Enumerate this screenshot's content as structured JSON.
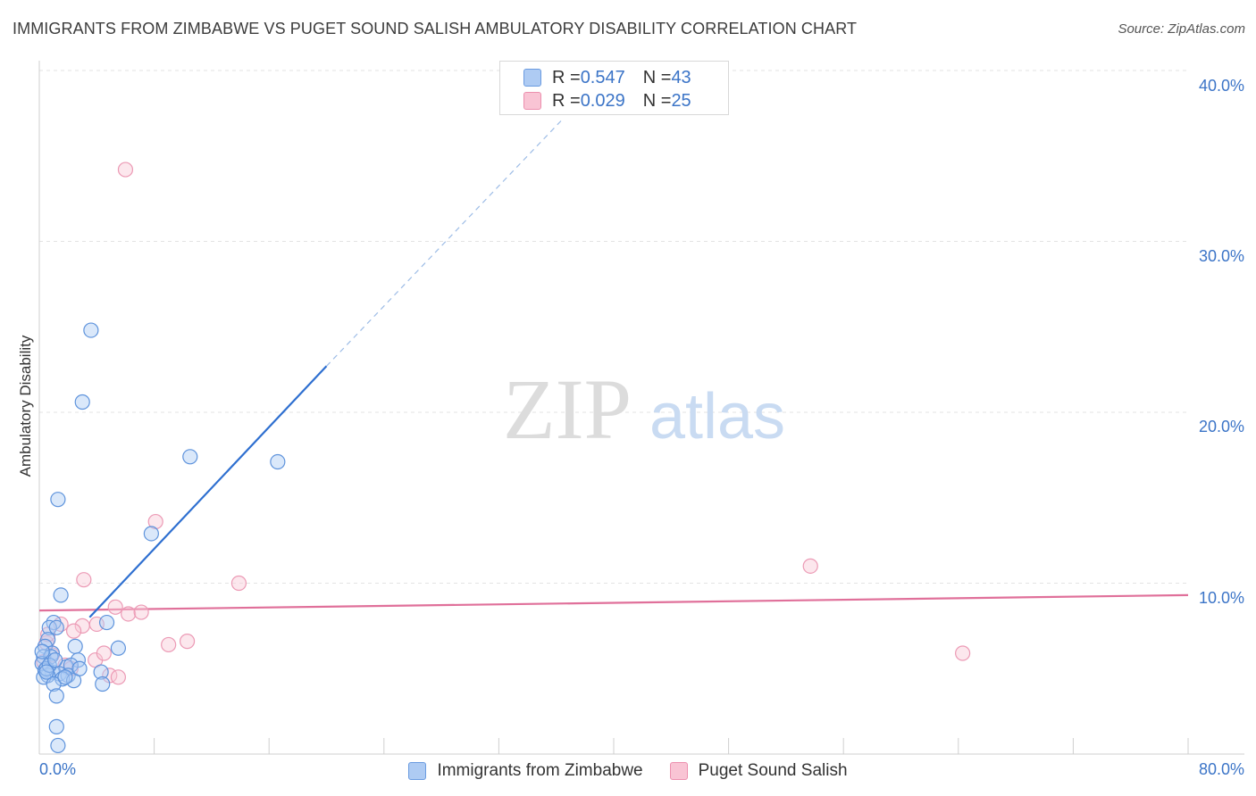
{
  "header": {
    "title": "IMMIGRANTS FROM ZIMBABWE VS PUGET SOUND SALISH AMBULATORY DISABILITY CORRELATION CHART",
    "source": "Source: ZipAtlas.com"
  },
  "watermark": {
    "zip": "ZIP",
    "atlas": "atlas"
  },
  "legend": {
    "rows": [
      {
        "r_label": "R = ",
        "r_value": "0.547",
        "n_label": "N = ",
        "n_value": "43",
        "color": "#aecbf3",
        "border": "#6a9be0"
      },
      {
        "r_label": "R = ",
        "r_value": "0.029",
        "n_label": "N = ",
        "n_value": "25",
        "color": "#f9c4d4",
        "border": "#ec8fae"
      }
    ]
  },
  "colors": {
    "blue_fill": "#aecbf3",
    "blue_stroke": "#5e93dc",
    "blue_line": "#2e6fd0",
    "pink_fill": "#f9c9d8",
    "pink_stroke": "#ec9ab5",
    "pink_line": "#e0709a",
    "tick_text": "#3b74c7",
    "grid": "#e3e3e3"
  },
  "chart_data": {
    "type": "scatter",
    "title": "IMMIGRANTS FROM ZIMBABWE VS PUGET SOUND SALISH AMBULATORY DISABILITY CORRELATION CHART",
    "xlabel": "",
    "ylabel": "Ambulatory Disability",
    "xlim": [
      0,
      80
    ],
    "ylim": [
      0,
      40
    ],
    "x_tick_labels": [
      "0.0%",
      "80.0%"
    ],
    "y_ticks": [
      10,
      20,
      30,
      40
    ],
    "y_tick_labels": [
      "10.0%",
      "20.0%",
      "30.0%",
      "40.0%"
    ],
    "grid": true,
    "legend_position": "top-center",
    "series": [
      {
        "name": "Immigrants from Zimbabwe",
        "color": "#aecbf3",
        "r": 0.547,
        "n": 43,
        "points": [
          [
            3.6,
            24.8
          ],
          [
            3.0,
            20.6
          ],
          [
            10.5,
            17.4
          ],
          [
            16.6,
            17.1
          ],
          [
            1.3,
            14.9
          ],
          [
            7.8,
            12.9
          ],
          [
            1.5,
            9.3
          ],
          [
            1.0,
            7.7
          ],
          [
            0.7,
            7.4
          ],
          [
            1.2,
            7.4
          ],
          [
            4.7,
            7.7
          ],
          [
            0.6,
            6.7
          ],
          [
            0.4,
            6.3
          ],
          [
            2.5,
            6.3
          ],
          [
            5.5,
            6.2
          ],
          [
            0.9,
            5.9
          ],
          [
            0.3,
            5.7
          ],
          [
            0.8,
            5.7
          ],
          [
            2.7,
            5.5
          ],
          [
            0.2,
            5.3
          ],
          [
            1.9,
            5.1
          ],
          [
            2.2,
            5.2
          ],
          [
            0.4,
            4.9
          ],
          [
            0.9,
            4.8
          ],
          [
            1.4,
            4.7
          ],
          [
            2.0,
            4.6
          ],
          [
            4.3,
            4.8
          ],
          [
            0.6,
            4.6
          ],
          [
            1.6,
            4.4
          ],
          [
            2.4,
            4.3
          ],
          [
            0.3,
            4.5
          ],
          [
            1.0,
            4.1
          ],
          [
            4.4,
            4.1
          ],
          [
            1.2,
            3.4
          ],
          [
            1.2,
            1.6
          ],
          [
            1.3,
            0.5
          ],
          [
            0.5,
            5.0
          ],
          [
            0.2,
            6.0
          ],
          [
            0.7,
            5.2
          ],
          [
            1.8,
            4.5
          ],
          [
            0.5,
            4.8
          ],
          [
            2.8,
            5.0
          ],
          [
            1.1,
            5.5
          ]
        ],
        "trend_solid": [
          [
            3.5,
            8.0
          ],
          [
            20.0,
            22.7
          ]
        ],
        "trend_dashed": [
          [
            20.0,
            22.7
          ],
          [
            36.5,
            37.2
          ]
        ]
      },
      {
        "name": "Puget Sound Salish",
        "color": "#f9c4d4",
        "r": 0.029,
        "n": 25,
        "points": [
          [
            6.0,
            34.2
          ],
          [
            8.1,
            13.6
          ],
          [
            3.1,
            10.2
          ],
          [
            13.9,
            10.0
          ],
          [
            53.7,
            11.0
          ],
          [
            5.3,
            8.6
          ],
          [
            6.2,
            8.2
          ],
          [
            7.1,
            8.3
          ],
          [
            1.5,
            7.6
          ],
          [
            3.0,
            7.5
          ],
          [
            4.0,
            7.6
          ],
          [
            2.4,
            7.2
          ],
          [
            0.5,
            6.5
          ],
          [
            9.0,
            6.4
          ],
          [
            10.3,
            6.6
          ],
          [
            0.9,
            5.8
          ],
          [
            3.9,
            5.5
          ],
          [
            4.5,
            5.9
          ],
          [
            1.8,
            5.2
          ],
          [
            4.9,
            4.6
          ],
          [
            5.5,
            4.5
          ],
          [
            64.3,
            5.9
          ],
          [
            0.6,
            7.0
          ],
          [
            2.2,
            5.0
          ],
          [
            0.3,
            5.4
          ]
        ],
        "trend": [
          [
            0,
            8.4
          ],
          [
            80,
            9.3
          ]
        ]
      }
    ]
  }
}
